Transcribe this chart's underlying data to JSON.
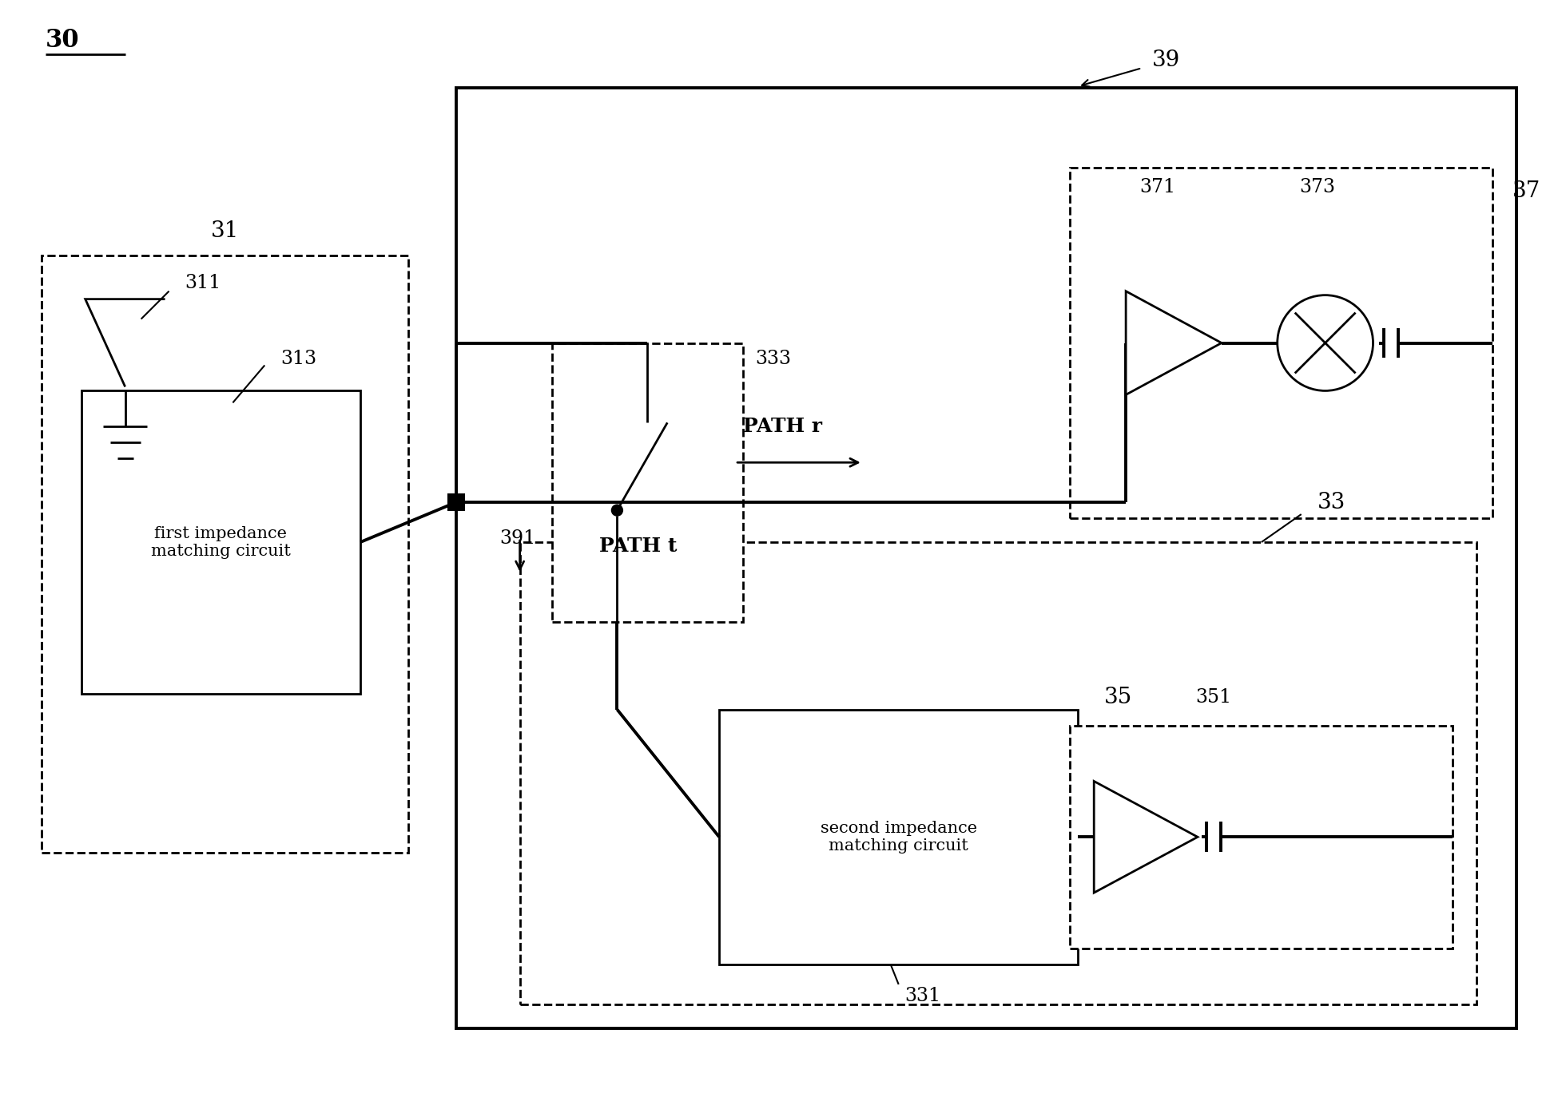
{
  "bg_color": "#ffffff",
  "line_color": "#000000",
  "fig_label": "30",
  "block31_label": "31",
  "block311_label": "311",
  "block313_label": "313",
  "block313_text": "first impedance\nmatching circuit",
  "block39_label": "39",
  "block391_label": "391",
  "block37_label": "37",
  "block371_label": "371",
  "block373_label": "373",
  "block33_label": "33",
  "block331_label": "331",
  "block331_text": "second impedance\nmatching circuit",
  "block333_label": "333",
  "block35_label": "35",
  "block351_label": "351",
  "path_r_text": "PATH r",
  "path_t_text": "PATH t"
}
